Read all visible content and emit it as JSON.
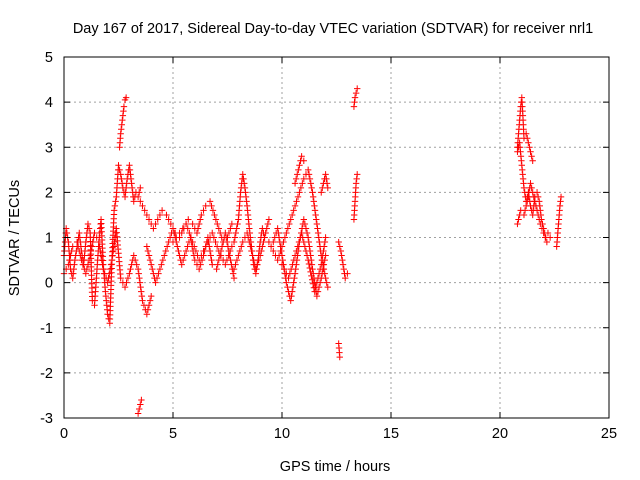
{
  "chart_data": {
    "type": "scatter",
    "title": "Day 167 of 2017, Sidereal Day-to-day VTEC variation (SDTVAR) for receiver nrl1",
    "xlabel": "GPS time / hours",
    "ylabel": "SDTVAR / TECUs",
    "xlim": [
      0,
      25
    ],
    "ylim": [
      -3,
      5
    ],
    "xticks": [
      0,
      5,
      10,
      15,
      20,
      25
    ],
    "yticks": [
      -3,
      -2,
      -1,
      0,
      1,
      2,
      3,
      4,
      5
    ],
    "grid": true,
    "marker": "+",
    "series_color": "#ff0000",
    "segments": [
      {
        "x": [
          0.0,
          0.1,
          0.2,
          0.3,
          0.4,
          0.5,
          0.6,
          0.7,
          0.8,
          0.9,
          1.0,
          1.1,
          1.2,
          1.3,
          1.4,
          1.5,
          1.6,
          1.7,
          1.8,
          1.9,
          2.0,
          2.1,
          2.2,
          2.3,
          2.4,
          2.5,
          2.6,
          2.7,
          2.8,
          2.9,
          3.0,
          3.1,
          3.2,
          3.3,
          3.4,
          3.5
        ],
        "y": [
          0.6,
          1.2,
          0.9,
          0.3,
          0.1,
          0.5,
          0.8,
          1.1,
          0.7,
          0.4,
          0.9,
          1.3,
          1.1,
          -0.4,
          -0.5,
          0.2,
          0.9,
          1.4,
          0.4,
          -0.2,
          -0.7,
          -0.9,
          0.5,
          1.6,
          1.9,
          2.6,
          2.4,
          2.1,
          1.9,
          2.3,
          2.6,
          2.2,
          1.8,
          2.0,
          1.9,
          2.1
        ]
      },
      {
        "x": [
          0.0,
          0.2,
          0.4,
          0.6,
          0.8,
          1.0,
          1.2,
          1.4,
          1.6,
          1.8,
          2.0,
          2.2,
          2.4,
          2.6,
          2.8,
          3.0,
          3.2,
          3.4,
          3.6,
          3.8,
          4.0
        ],
        "y": [
          0.2,
          0.4,
          0.8,
          0.9,
          0.5,
          0.2,
          0.6,
          1.1,
          0.9,
          0.3,
          0.0,
          0.5,
          1.2,
          0.1,
          -0.1,
          0.2,
          0.6,
          0.3,
          -0.4,
          -0.7,
          -0.3
        ]
      },
      {
        "x": [
          2.55,
          2.6,
          2.65,
          2.7,
          2.75,
          2.8,
          2.85
        ],
        "y": [
          3.0,
          3.3,
          3.5,
          3.7,
          3.9,
          4.05,
          4.1
        ]
      },
      {
        "x": [
          3.4,
          3.45,
          3.5,
          3.55
        ],
        "y": [
          -2.9,
          -2.8,
          -2.7,
          -2.6
        ]
      },
      {
        "x": [
          3.5,
          3.7,
          3.9,
          4.1,
          4.3,
          4.5,
          4.7,
          4.9,
          5.1,
          5.3,
          5.5,
          5.7,
          5.9,
          6.1,
          6.3,
          6.5,
          6.7,
          6.9,
          7.1,
          7.3,
          7.5,
          7.7
        ],
        "y": [
          1.8,
          1.6,
          1.4,
          1.2,
          1.4,
          1.6,
          1.5,
          1.3,
          1.1,
          1.0,
          1.2,
          1.4,
          1.3,
          1.1,
          1.5,
          1.7,
          1.8,
          1.5,
          1.2,
          0.9,
          1.0,
          1.3
        ]
      },
      {
        "x": [
          3.8,
          4.0,
          4.2,
          4.4,
          4.6,
          4.8,
          5.0,
          5.2,
          5.4,
          5.6,
          5.8,
          6.0,
          6.2,
          6.4,
          6.6,
          6.8,
          7.0,
          7.2,
          7.4,
          7.6,
          7.8
        ],
        "y": [
          0.8,
          0.4,
          0.0,
          0.3,
          0.6,
          0.9,
          1.2,
          0.8,
          0.4,
          0.7,
          1.0,
          0.5,
          0.3,
          0.6,
          1.0,
          0.4,
          0.3,
          0.7,
          1.1,
          0.6,
          0.1
        ]
      },
      {
        "x": [
          5.0,
          5.3,
          5.6,
          5.9,
          6.2,
          6.5,
          6.8,
          7.1,
          7.4,
          7.7
        ],
        "y": [
          0.9,
          1.1,
          1.3,
          0.9,
          0.5,
          0.8,
          1.1,
          0.7,
          0.4,
          0.8
        ]
      },
      {
        "x": [
          7.8,
          8.0,
          8.1,
          8.2,
          8.3,
          8.4,
          8.5,
          8.6,
          8.7,
          8.8,
          8.9,
          9.0,
          9.1,
          9.2
        ],
        "y": [
          0.9,
          1.4,
          2.0,
          2.4,
          2.1,
          1.7,
          1.2,
          0.8,
          0.4,
          0.2,
          0.5,
          0.9,
          1.2,
          1.0
        ]
      },
      {
        "x": [
          7.8,
          8.0,
          8.2,
          8.4,
          8.6,
          8.8,
          9.0,
          9.2,
          9.4
        ],
        "y": [
          0.3,
          0.6,
          0.9,
          1.1,
          0.7,
          0.3,
          0.6,
          1.0,
          1.4
        ]
      },
      {
        "x": [
          9.4,
          9.6,
          9.8,
          10.0,
          10.2,
          10.4,
          10.6,
          10.8,
          11.0,
          11.2,
          11.4,
          11.6,
          11.8,
          12.0,
          12.1
        ],
        "y": [
          0.9,
          0.7,
          0.5,
          0.8,
          1.1,
          1.4,
          1.7,
          2.0,
          2.3,
          2.5,
          2.0,
          1.3,
          0.6,
          0.1,
          -0.1
        ]
      },
      {
        "x": [
          9.6,
          9.8,
          10.0,
          10.2,
          10.4,
          10.6,
          10.8,
          11.0,
          11.2,
          11.4,
          11.6,
          11.8,
          12.0
        ],
        "y": [
          0.9,
          1.2,
          0.6,
          0.0,
          -0.4,
          0.2,
          0.9,
          1.4,
          1.0,
          0.3,
          -0.3,
          0.1,
          0.6
        ]
      },
      {
        "x": [
          10.0,
          10.3,
          10.6,
          10.9,
          11.2,
          11.5,
          11.8,
          12.0
        ],
        "y": [
          0.4,
          0.1,
          0.6,
          1.1,
          0.5,
          -0.2,
          0.4,
          1.0
        ]
      },
      {
        "x": [
          10.6,
          10.7,
          10.8,
          10.9,
          11.0
        ],
        "y": [
          2.2,
          2.4,
          2.6,
          2.8,
          2.7
        ]
      },
      {
        "x": [
          11.8,
          11.9,
          12.0,
          12.1
        ],
        "y": [
          2.0,
          2.2,
          2.4,
          2.1
        ]
      },
      {
        "x": [
          12.6,
          12.7,
          12.8,
          12.9,
          13.0
        ],
        "y": [
          0.9,
          0.7,
          0.4,
          0.1,
          0.2
        ]
      },
      {
        "x": [
          12.6,
          12.65
        ],
        "y": [
          -1.35,
          -1.65
        ]
      },
      {
        "x": [
          13.3,
          13.35,
          13.4,
          13.45
        ],
        "y": [
          3.9,
          4.1,
          4.2,
          4.3
        ]
      },
      {
        "x": [
          13.3,
          13.35,
          13.4,
          13.45
        ],
        "y": [
          1.4,
          1.8,
          2.2,
          2.4
        ]
      },
      {
        "x": [
          20.8,
          20.85,
          20.9,
          20.95,
          21.0,
          21.05,
          21.1
        ],
        "y": [
          3.0,
          3.3,
          3.6,
          3.9,
          4.1,
          3.7,
          3.2
        ]
      },
      {
        "x": [
          20.8,
          20.9,
          21.0,
          21.1,
          21.2,
          21.3,
          21.4,
          21.5,
          21.6,
          21.7,
          21.8,
          21.9,
          22.0,
          22.1,
          22.2
        ],
        "y": [
          2.9,
          3.1,
          2.6,
          2.1,
          1.8,
          2.0,
          1.7,
          1.5,
          1.9,
          2.0,
          1.8,
          1.4,
          1.2,
          1.0,
          1.1
        ]
      },
      {
        "x": [
          20.8,
          20.95,
          21.1,
          21.25,
          21.4,
          21.55,
          21.7,
          21.85,
          22.0,
          22.15,
          22.3
        ],
        "y": [
          1.3,
          1.6,
          1.5,
          1.8,
          2.2,
          1.9,
          1.6,
          1.3,
          1.1,
          0.9,
          1.0
        ]
      },
      {
        "x": [
          21.2,
          21.3,
          21.4,
          21.5
        ],
        "y": [
          3.3,
          3.1,
          2.9,
          2.7
        ]
      },
      {
        "x": [
          22.6,
          22.65,
          22.7,
          22.75,
          22.8
        ],
        "y": [
          0.8,
          1.1,
          1.4,
          1.7,
          1.9
        ]
      }
    ]
  }
}
